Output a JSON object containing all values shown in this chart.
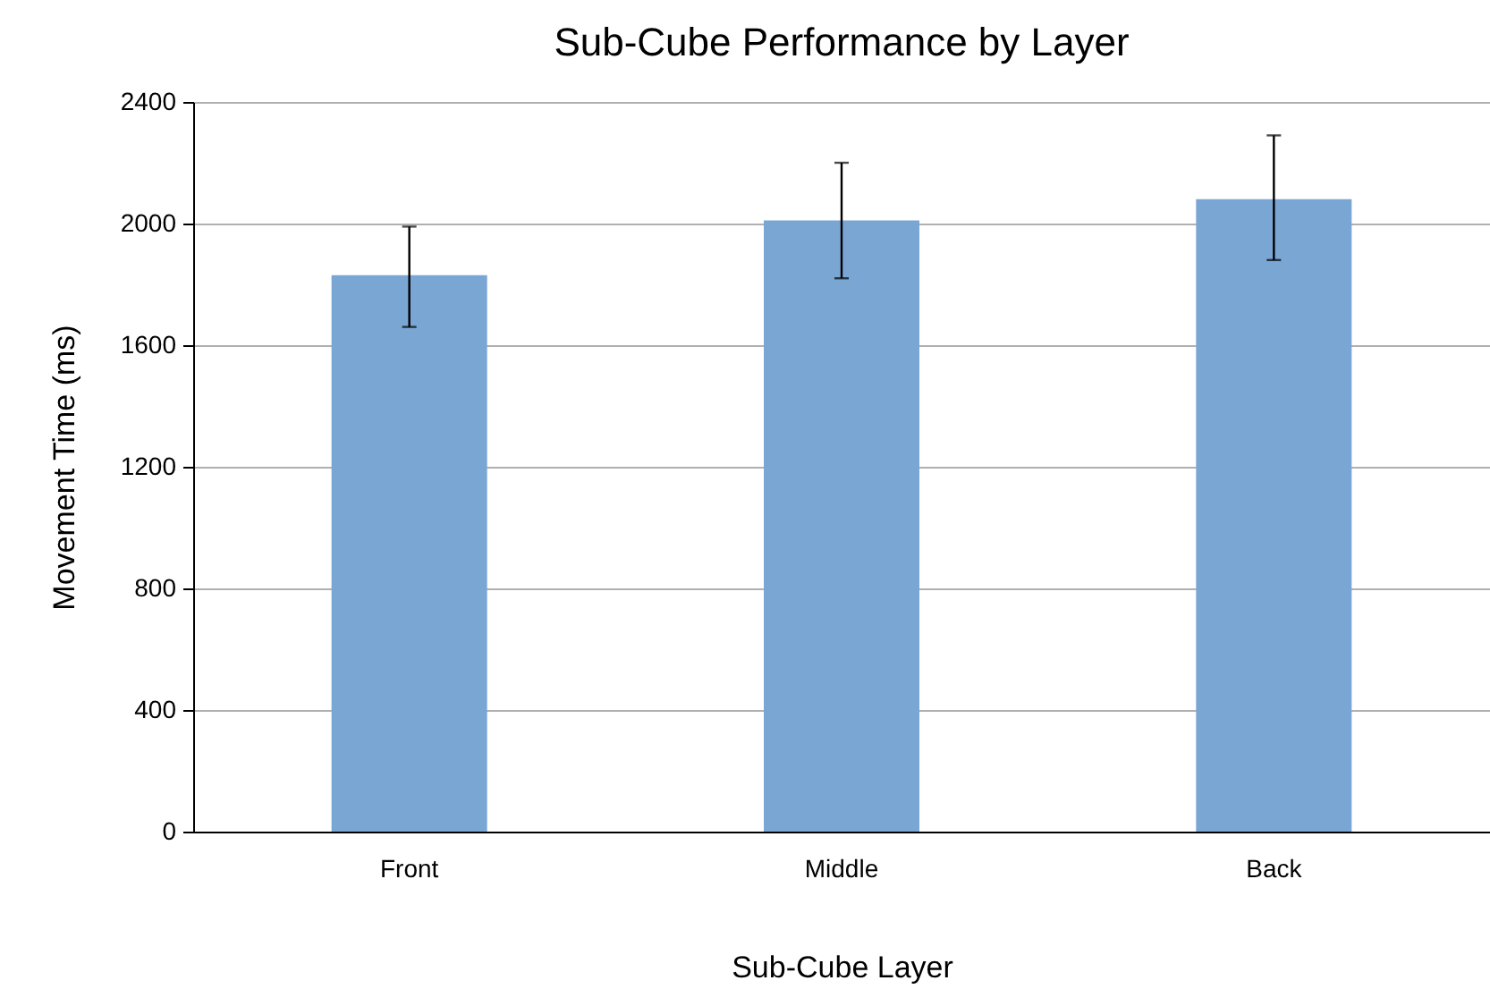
{
  "chart_data": {
    "type": "bar",
    "title": "Sub-Cube Performance by Layer",
    "xlabel": "Sub-Cube Layer",
    "ylabel": "Movement Time (ms)",
    "categories": [
      "Front",
      "Middle",
      "Back"
    ],
    "values": [
      1830,
      2010,
      2080
    ],
    "errors": [
      [
        1660,
        1990
      ],
      [
        1820,
        2200
      ],
      [
        1880,
        2290
      ]
    ],
    "color": "#7aa6d4",
    "ylim": [
      0,
      2400
    ],
    "yticks": [
      0,
      400,
      800,
      1200,
      1600,
      2000,
      2400
    ],
    "grid": "y"
  }
}
